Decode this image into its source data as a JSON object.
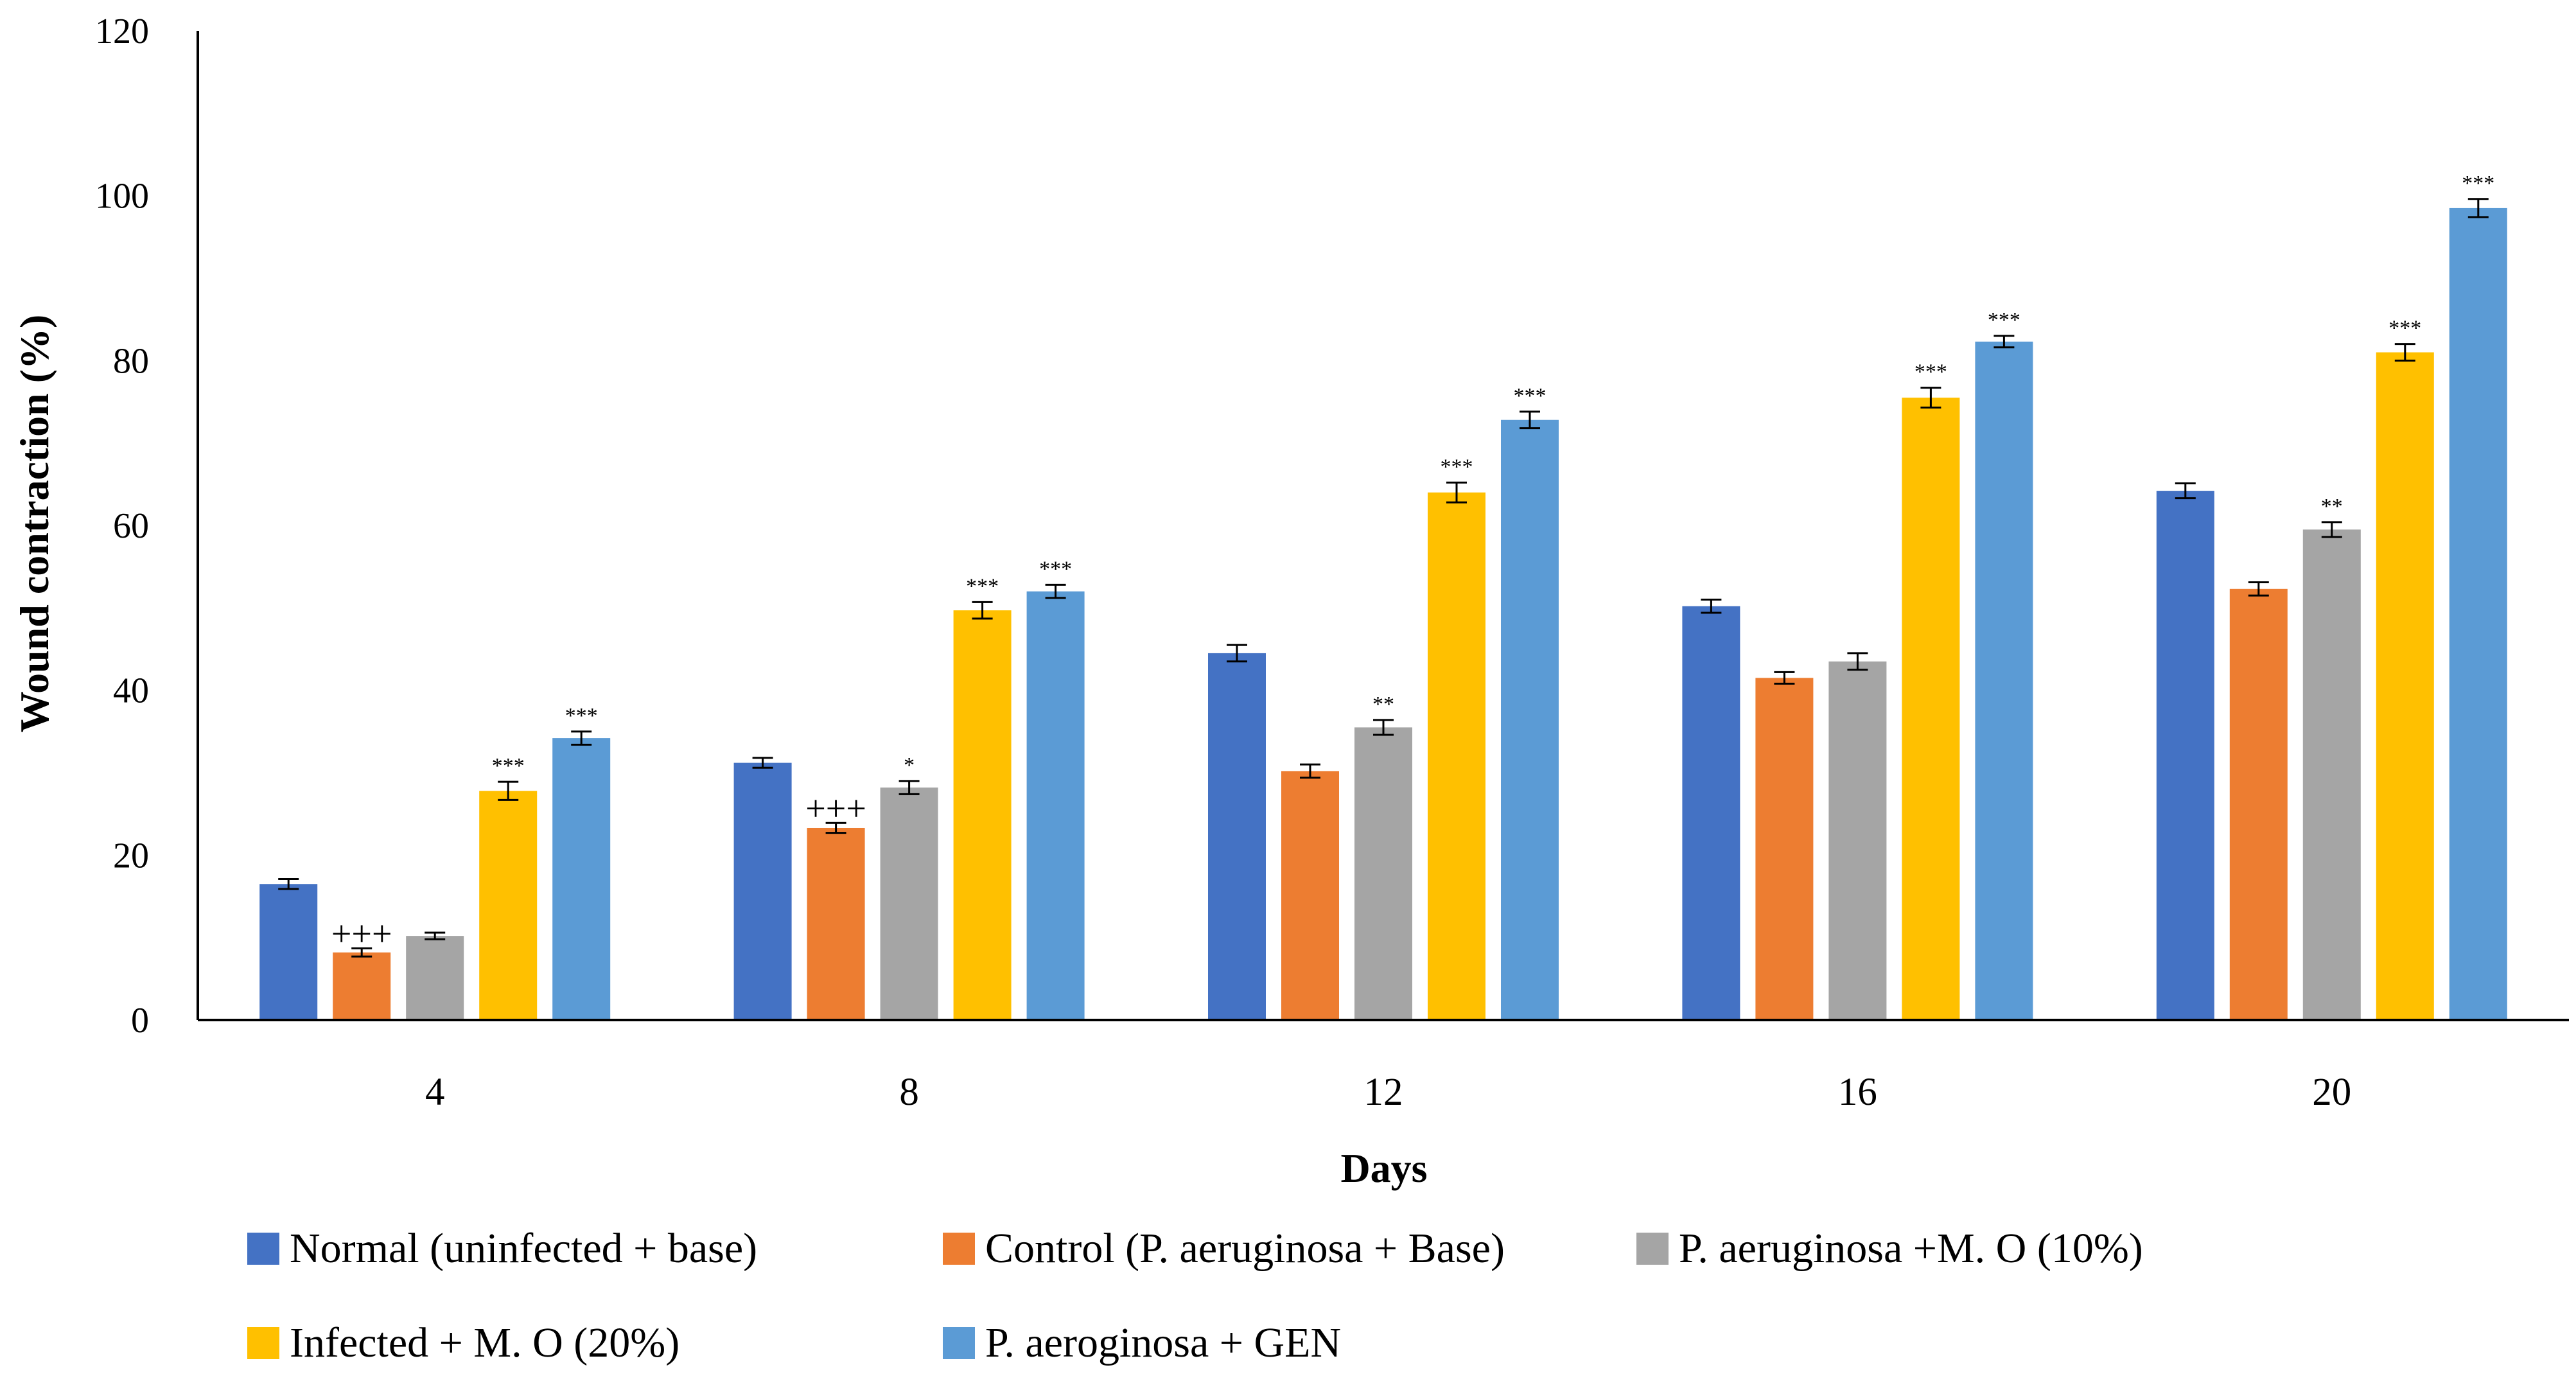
{
  "chart_data": {
    "type": "bar",
    "title": "",
    "xlabel": "Days",
    "ylabel": "Wound contraction (%)",
    "ylim": [
      0,
      120
    ],
    "yticks": [
      0,
      20,
      40,
      60,
      80,
      100,
      120
    ],
    "grid": false,
    "legend_position": "bottom",
    "categories": [
      "4",
      "8",
      "12",
      "16",
      "20"
    ],
    "series": [
      {
        "name": "Normal (uninfected + base)",
        "color": "#4472C4",
        "values": [
          16.5,
          31.2,
          44.5,
          50.2,
          64.2
        ],
        "errors": [
          0.6,
          0.6,
          1.0,
          0.8,
          0.9
        ],
        "annotations": [
          "",
          "",
          "",
          "",
          ""
        ]
      },
      {
        "name": "Control (P. aeruginosa + Base)",
        "color": "#ED7D31",
        "values": [
          8.2,
          23.3,
          30.2,
          41.5,
          52.3
        ],
        "errors": [
          0.5,
          0.6,
          0.8,
          0.7,
          0.8
        ],
        "annotations": [
          "+++",
          "+++",
          "",
          "",
          ""
        ]
      },
      {
        "name": "P. aeruginosa +M. O (10%)",
        "color": "#A5A5A5",
        "values": [
          10.2,
          28.2,
          35.5,
          43.5,
          59.5
        ],
        "errors": [
          0.4,
          0.8,
          0.9,
          1.0,
          0.9
        ],
        "annotations": [
          "",
          "*",
          "**",
          "",
          "**"
        ]
      },
      {
        "name": "Infected + M. O (20%)",
        "color": "#FFC000",
        "values": [
          27.8,
          49.7,
          64.0,
          75.5,
          81.0
        ],
        "errors": [
          1.1,
          1.0,
          1.2,
          1.2,
          1.0
        ],
        "annotations": [
          "***",
          "***",
          "***",
          "***",
          "***"
        ]
      },
      {
        "name": "P. aeroginosa + GEN",
        "color": "#5B9BD5",
        "values": [
          34.2,
          52.0,
          72.8,
          82.3,
          98.5
        ],
        "errors": [
          0.8,
          0.8,
          1.0,
          0.7,
          1.1
        ],
        "annotations": [
          "***",
          "***",
          "***",
          "***",
          "***"
        ]
      }
    ]
  }
}
